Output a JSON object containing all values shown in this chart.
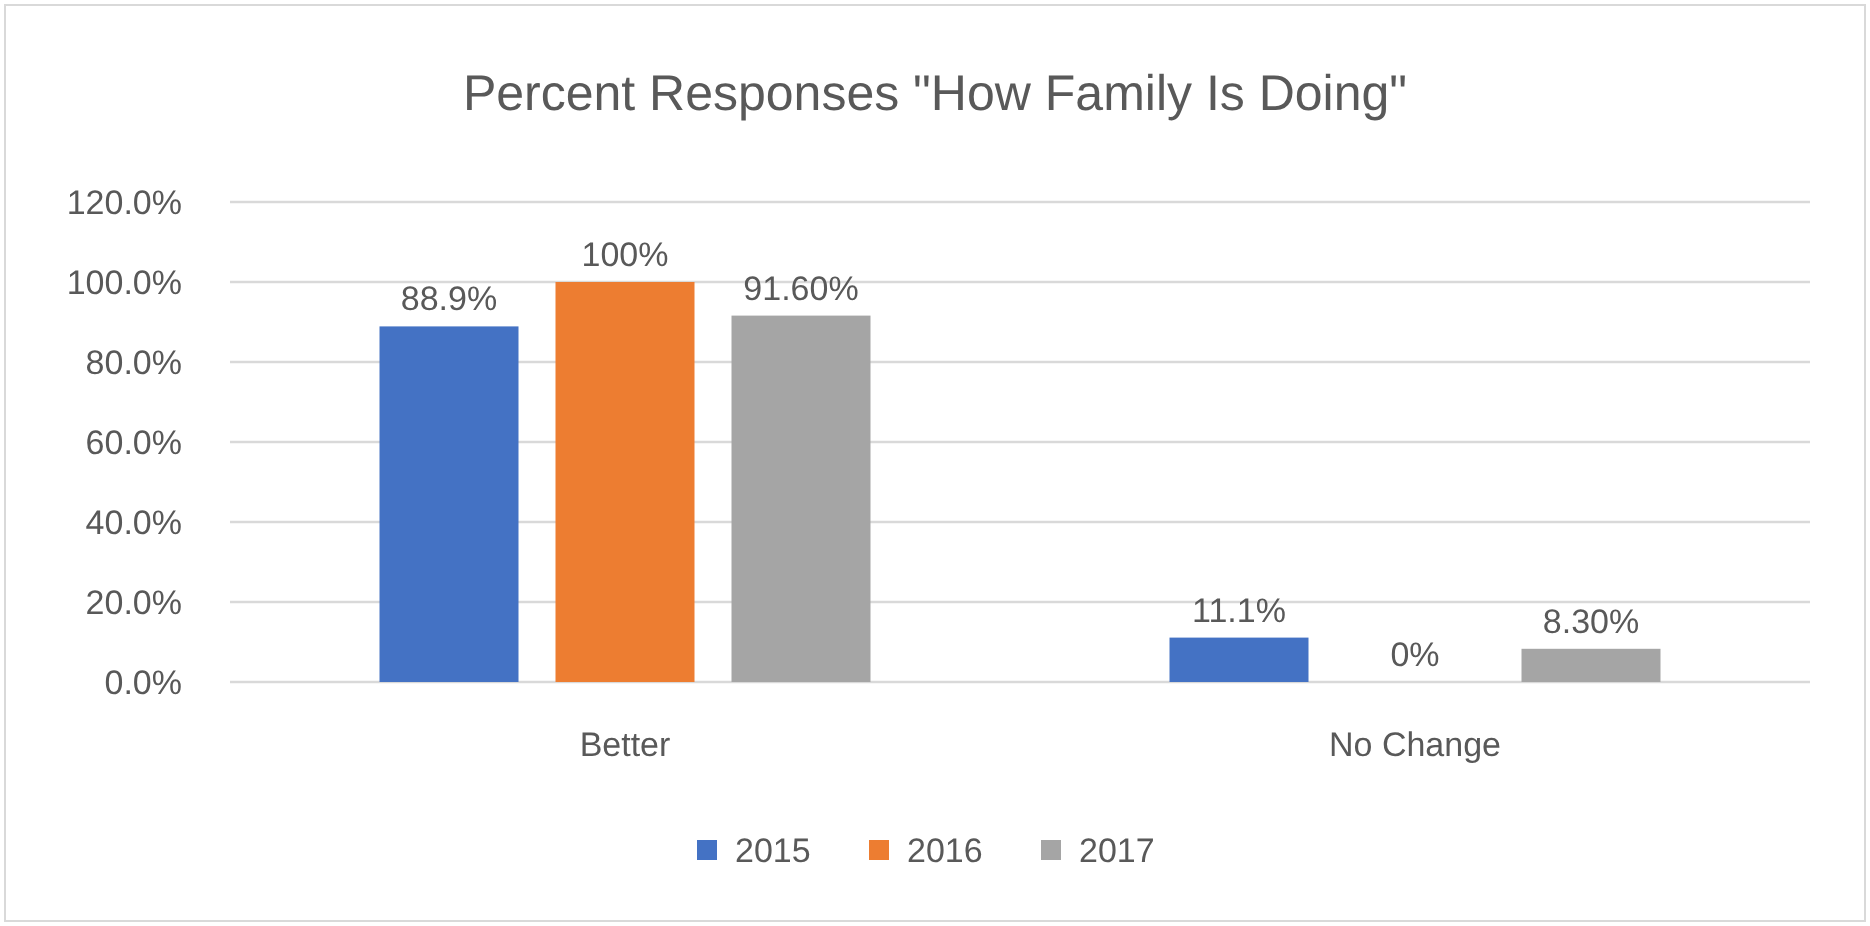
{
  "chart_data": {
    "type": "bar",
    "title": "Percent Responses \"How Family Is Doing\"",
    "categories": [
      "Better",
      "No Change"
    ],
    "series": [
      {
        "name": "2015",
        "color": "#4472c4",
        "values": [
          88.9,
          11.1
        ],
        "value_labels": [
          "88.9%",
          "11.1%"
        ]
      },
      {
        "name": "2016",
        "color": "#ed7d31",
        "values": [
          100,
          0
        ],
        "value_labels": [
          "100%",
          "0%"
        ]
      },
      {
        "name": "2017",
        "color": "#a5a5a5",
        "values": [
          91.6,
          8.3
        ],
        "value_labels": [
          "91.60%",
          "8.30%"
        ]
      }
    ],
    "ylim": [
      0,
      120
    ],
    "yticks": [
      {
        "value": 0,
        "label": "0.0%"
      },
      {
        "value": 20,
        "label": "20.0%"
      },
      {
        "value": 40,
        "label": "40.0%"
      },
      {
        "value": 60,
        "label": "60.0%"
      },
      {
        "value": 80,
        "label": "80.0%"
      },
      {
        "value": 100,
        "label": "100.0%"
      },
      {
        "value": 120,
        "label": "120.0%"
      }
    ],
    "grid": "y",
    "legend": "bottom"
  }
}
